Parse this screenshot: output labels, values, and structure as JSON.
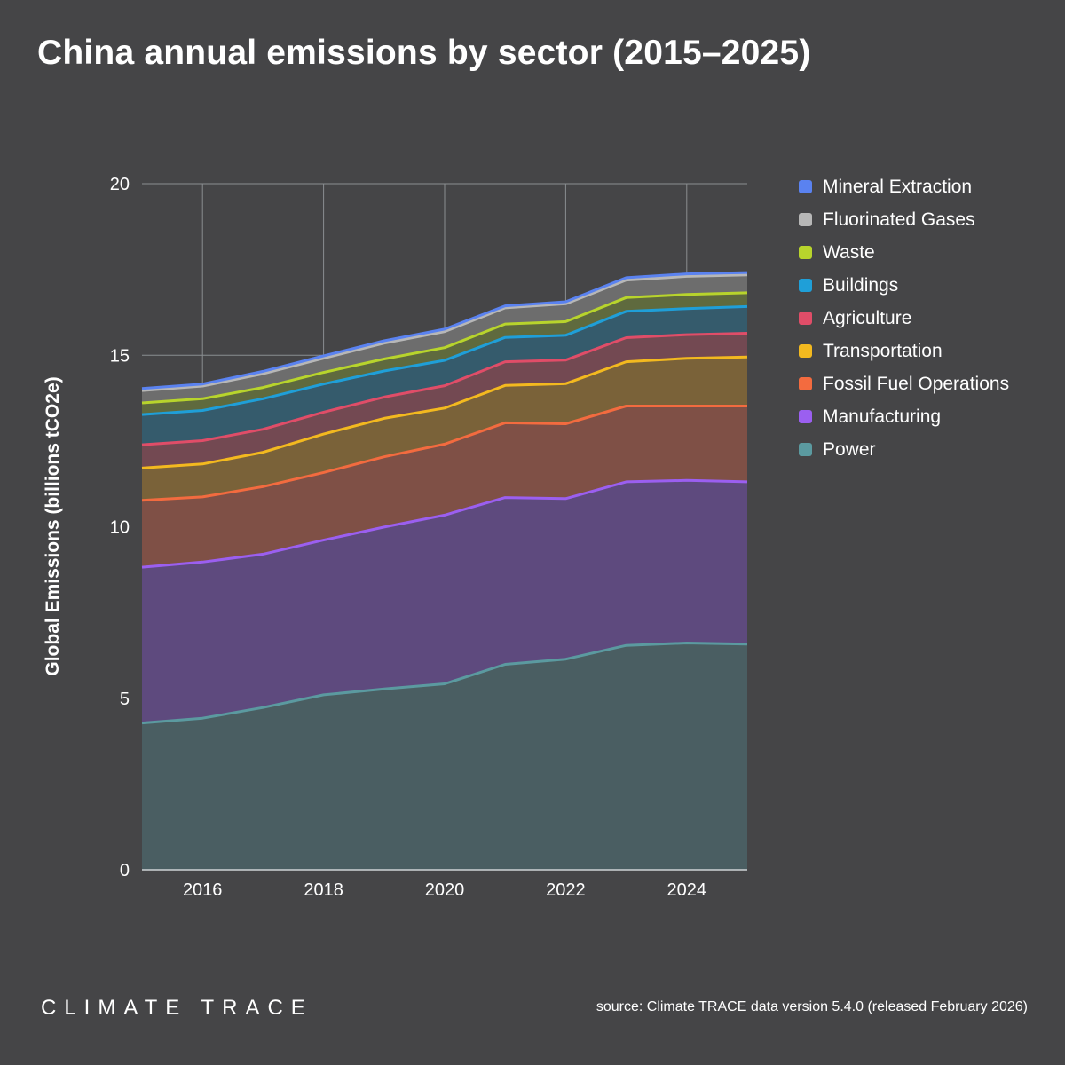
{
  "title": "China annual emissions by sector (2015–2025)",
  "brand": "CLIMATE TRACE",
  "source": "source: Climate TRACE data version 5.4.0 (released February 2026)",
  "chart_data": {
    "type": "area",
    "stacked": true,
    "title": "China annual emissions by sector (2015–2025)",
    "ylabel": "Global Emissions (billions tCO2e)",
    "xlabel": "",
    "x": [
      2015,
      2016,
      2017,
      2018,
      2019,
      2020,
      2021,
      2022,
      2023,
      2024,
      2025
    ],
    "xlim": [
      2015,
      2025
    ],
    "ylim": [
      0,
      20
    ],
    "xticks": [
      "2016",
      "2018",
      "2020",
      "2022",
      "2024"
    ],
    "yticks": [
      "0",
      "5",
      "10",
      "15",
      "20"
    ],
    "grid": true,
    "legend_position": "right",
    "series": [
      {
        "name": "Power",
        "color": "#5b9aa0",
        "fill": "#4a5e62",
        "values": [
          4.28,
          4.42,
          4.73,
          5.1,
          5.27,
          5.42,
          5.99,
          6.14,
          6.54,
          6.61,
          6.58
        ]
      },
      {
        "name": "Manufacturing",
        "color": "#9b5ff0",
        "fill": "#5e4a7e",
        "values": [
          4.54,
          4.55,
          4.47,
          4.51,
          4.72,
          4.92,
          4.86,
          4.68,
          4.77,
          4.74,
          4.73
        ]
      },
      {
        "name": "Fossil Fuel Operations",
        "color": "#f36b3f",
        "fill": "#7f5046",
        "values": [
          1.95,
          1.9,
          1.97,
          1.97,
          2.05,
          2.07,
          2.18,
          2.18,
          2.21,
          2.17,
          2.21
        ]
      },
      {
        "name": "Transportation",
        "color": "#f3b91f",
        "fill": "#7a6239",
        "values": [
          0.94,
          0.96,
          1.0,
          1.12,
          1.12,
          1.05,
          1.09,
          1.17,
          1.29,
          1.39,
          1.43
        ]
      },
      {
        "name": "Agriculture",
        "color": "#e04d68",
        "fill": "#734952",
        "values": [
          0.68,
          0.68,
          0.67,
          0.64,
          0.62,
          0.65,
          0.69,
          0.69,
          0.7,
          0.69,
          0.69
        ]
      },
      {
        "name": "Buildings",
        "color": "#1f9fd8",
        "fill": "#355b6c",
        "values": [
          0.88,
          0.88,
          0.89,
          0.82,
          0.76,
          0.74,
          0.71,
          0.72,
          0.77,
          0.76,
          0.78
        ]
      },
      {
        "name": "Waste",
        "color": "#b8d42c",
        "fill": "#5f6a3e",
        "values": [
          0.34,
          0.34,
          0.33,
          0.34,
          0.35,
          0.37,
          0.39,
          0.4,
          0.4,
          0.41,
          0.4
        ]
      },
      {
        "name": "Fluorinated Gases",
        "color": "#b7b7b7",
        "fill": "#6d6d6d",
        "values": [
          0.36,
          0.37,
          0.4,
          0.41,
          0.46,
          0.47,
          0.47,
          0.52,
          0.51,
          0.53,
          0.52
        ]
      },
      {
        "name": "Mineral Extraction",
        "color": "#5a82f0",
        "fill": "#5b6a8e",
        "values": [
          0.06,
          0.06,
          0.07,
          0.07,
          0.07,
          0.07,
          0.06,
          0.06,
          0.07,
          0.07,
          0.07
        ]
      }
    ]
  }
}
